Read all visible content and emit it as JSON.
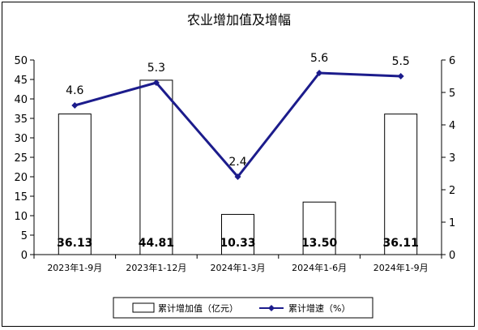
{
  "chart_data": {
    "type": "bar",
    "title": "农业增加值及增幅",
    "categories": [
      "2023年1-9月",
      "2023年1-12月",
      "2024年1-3月",
      "2024年1-6月",
      "2024年1-9月"
    ],
    "series": [
      {
        "name": "累计增加值（亿元）",
        "type": "bar",
        "axis": "left",
        "values": [
          36.13,
          44.81,
          10.33,
          13.5,
          36.11
        ],
        "labels": [
          "36.13",
          "44.81",
          "10.33",
          "13.50",
          "36.11"
        ]
      },
      {
        "name": "累计增速（%）",
        "type": "line",
        "axis": "right",
        "values": [
          4.6,
          5.3,
          2.4,
          5.6,
          5.5
        ],
        "labels": [
          "4.6",
          "5.3",
          "2.4",
          "5.6",
          "5.5"
        ]
      }
    ],
    "y_left": {
      "min": 0,
      "max": 50,
      "step": 5
    },
    "y_right": {
      "min": 0,
      "max": 6,
      "step": 1
    },
    "legend_position": "bottom",
    "grid": false,
    "colors": {
      "bar_fill": "#ffffff",
      "bar_stroke": "#000000",
      "line": "#1c1c8c"
    }
  }
}
